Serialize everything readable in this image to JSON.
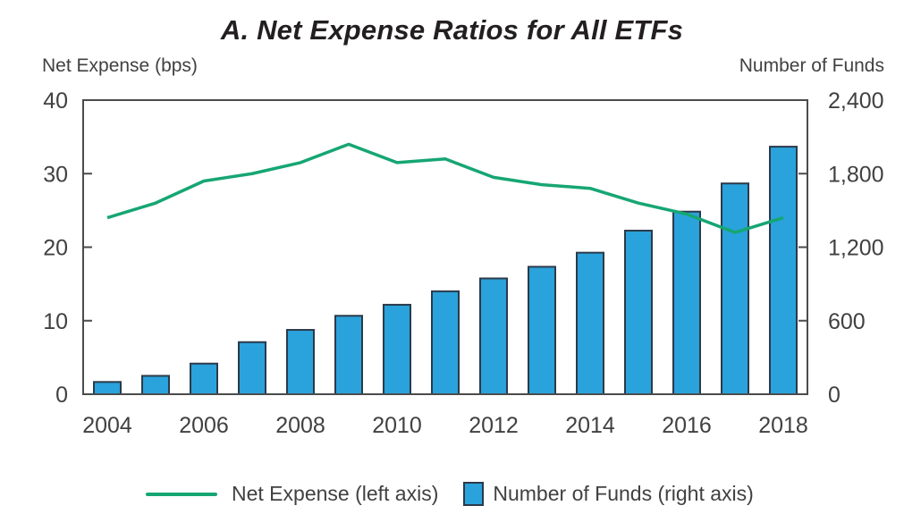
{
  "title": "A. Net Expense Ratios for All ETFs",
  "left_axis_title": "Net Expense (bps)",
  "right_axis_title": "Number of Funds",
  "legend": {
    "line_label": "Net Expense (left axis)",
    "bar_label": "Number of Funds (right axis)"
  },
  "colors": {
    "bar_fill": "#2aa2db",
    "bar_stroke": "#2b3a4a",
    "line": "#16a673",
    "frame": "#4a4b4d",
    "text": "#414042"
  },
  "chart_data": {
    "type": "combo-bar-line-dual-axis",
    "x": [
      2004,
      2005,
      2006,
      2007,
      2008,
      2009,
      2010,
      2011,
      2012,
      2013,
      2014,
      2015,
      2016,
      2017,
      2018
    ],
    "x_tick_labels": [
      "2004",
      "2006",
      "2008",
      "2010",
      "2012",
      "2014",
      "2016",
      "2018"
    ],
    "series": [
      {
        "name": "Net Expense (left axis)",
        "type": "line",
        "axis": "left",
        "values": [
          24,
          26,
          29,
          30,
          31.5,
          34,
          31.5,
          32,
          29.5,
          28.5,
          28,
          26,
          24.5,
          22,
          24
        ]
      },
      {
        "name": "Number of Funds (right axis)",
        "type": "bar",
        "axis": "right",
        "values": [
          100,
          150,
          250,
          425,
          525,
          640,
          730,
          840,
          945,
          1040,
          1155,
          1335,
          1490,
          1720,
          2020
        ]
      }
    ],
    "left_axis": {
      "label": "Net Expense (bps)",
      "min": 0,
      "max": 40,
      "tick_values": [
        0,
        10,
        20,
        30,
        40
      ],
      "tick_labels": [
        "0",
        "10",
        "20",
        "30",
        "40"
      ]
    },
    "right_axis": {
      "label": "Number of Funds",
      "min": 0,
      "max": 2400,
      "tick_values": [
        0,
        600,
        1200,
        1800,
        2400
      ],
      "tick_labels": [
        "0",
        "600",
        "1,200",
        "1,800",
        "2,400"
      ]
    },
    "grid": false,
    "legend_position": "bottom",
    "title": "A. Net Expense Ratios for All ETFs"
  }
}
